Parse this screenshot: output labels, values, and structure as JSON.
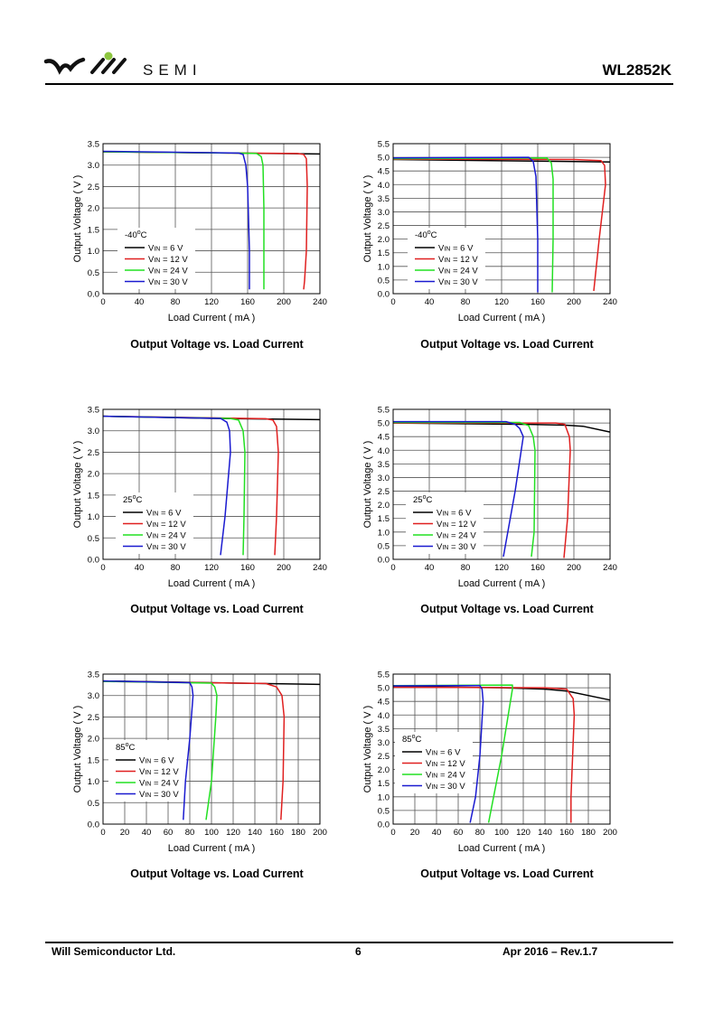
{
  "header": {
    "logo_text": "SEMI",
    "part_number": "WL2852K",
    "logo_accent": "#8dc63f"
  },
  "footer": {
    "company": "Will Semiconductor Ltd.",
    "page": "6",
    "revision": "Apr 2016 – Rev.1.7"
  },
  "colors": {
    "6V": "#000000",
    "12V": "#e02020",
    "24V": "#22e022",
    "30V": "#1a1ad0"
  },
  "chart_data": [
    {
      "type": "line",
      "title": "Output Voltage vs. Load Current",
      "xlabel": "Load Current ( mA )",
      "ylabel": "Output Voltage ( V )",
      "legend_title": "-40",
      "legend_unit": "C",
      "xlim": [
        0,
        240
      ],
      "ylim": [
        0,
        3.5
      ],
      "xticks": [
        0,
        40,
        80,
        120,
        160,
        200,
        240
      ],
      "yticks": [
        "0.0",
        "0.5",
        "1.0",
        "1.5",
        "2.0",
        "2.5",
        "3.0",
        "3.5"
      ],
      "grid": true,
      "legend": "center-left",
      "series": [
        {
          "name": "= 6 V",
          "key": "6V",
          "points": [
            [
              0,
              3.31
            ],
            [
              240,
              3.26
            ]
          ]
        },
        {
          "name": "= 12 V",
          "key": "12V",
          "points": [
            [
              0,
              3.31
            ],
            [
              150,
              3.28
            ],
            [
              215,
              3.27
            ],
            [
              222,
              3.25
            ],
            [
              225,
              3.15
            ],
            [
              226,
              2.5
            ],
            [
              225,
              1.0
            ],
            [
              223,
              0.3
            ],
            [
              222,
              0.1
            ]
          ]
        },
        {
          "name": "= 24 V",
          "key": "24V",
          "points": [
            [
              0,
              3.31
            ],
            [
              150,
              3.28
            ],
            [
              170,
              3.27
            ],
            [
              175,
              3.2
            ],
            [
              177,
              3.0
            ],
            [
              178,
              2.0
            ],
            [
              178,
              0.1
            ]
          ]
        },
        {
          "name": "= 30 V",
          "key": "30V",
          "points": [
            [
              0,
              3.32
            ],
            [
              150,
              3.28
            ],
            [
              155,
              3.25
            ],
            [
              158,
              3.0
            ],
            [
              160,
              2.5
            ],
            [
              162,
              1.0
            ],
            [
              162,
              0.1
            ]
          ]
        }
      ]
    },
    {
      "type": "line",
      "title": "Output Voltage vs. Load Current",
      "xlabel": "Load Current ( mA )",
      "ylabel": "Output Voltage ( V )",
      "legend_title": "-40",
      "legend_unit": "C",
      "xlim": [
        0,
        240
      ],
      "ylim": [
        0,
        5.5
      ],
      "xticks": [
        0,
        40,
        80,
        120,
        160,
        200,
        240
      ],
      "yticks": [
        "0.0",
        "0.5",
        "1.0",
        "1.5",
        "2.0",
        "2.5",
        "3.0",
        "3.5",
        "4.0",
        "4.5",
        "5.0",
        "5.5"
      ],
      "grid": true,
      "legend": "center-left",
      "series": [
        {
          "name": "= 6 V",
          "key": "6V",
          "points": [
            [
              0,
              4.92
            ],
            [
              240,
              4.83
            ]
          ]
        },
        {
          "name": "= 12 V",
          "key": "12V",
          "points": [
            [
              0,
              4.93
            ],
            [
              200,
              4.92
            ],
            [
              230,
              4.88
            ],
            [
              234,
              4.7
            ],
            [
              235,
              4.0
            ],
            [
              228,
              2.0
            ],
            [
              222,
              0.1
            ]
          ]
        },
        {
          "name": "= 24 V",
          "key": "24V",
          "points": [
            [
              0,
              4.95
            ],
            [
              170,
              4.98
            ],
            [
              175,
              4.8
            ],
            [
              177,
              4.2
            ],
            [
              177,
              2.0
            ],
            [
              176,
              0.05
            ]
          ]
        },
        {
          "name": "= 30 V",
          "key": "30V",
          "points": [
            [
              0,
              4.98
            ],
            [
              150,
              5.0
            ],
            [
              155,
              4.85
            ],
            [
              158,
              4.3
            ],
            [
              160,
              2.0
            ],
            [
              160,
              0.05
            ]
          ]
        }
      ]
    },
    {
      "type": "line",
      "title": "Output Voltage vs. Load Current",
      "xlabel": "Load Current ( mA )",
      "ylabel": "Output Voltage ( V )",
      "legend_title": "25",
      "legend_unit": "C",
      "xlim": [
        0,
        240
      ],
      "ylim": [
        0,
        3.5
      ],
      "xticks": [
        0,
        40,
        80,
        120,
        160,
        200,
        240
      ],
      "yticks": [
        "0.0",
        "0.5",
        "1.0",
        "1.5",
        "2.0",
        "2.5",
        "3.0",
        "3.5"
      ],
      "grid": true,
      "legend": "bottom-left",
      "series": [
        {
          "name": "= 6 V",
          "key": "6V",
          "points": [
            [
              0,
              3.34
            ],
            [
              120,
              3.29
            ],
            [
              240,
              3.26
            ]
          ]
        },
        {
          "name": "= 12 V",
          "key": "12V",
          "points": [
            [
              0,
              3.34
            ],
            [
              180,
              3.28
            ],
            [
              188,
              3.25
            ],
            [
              192,
              3.1
            ],
            [
              194,
              2.5
            ],
            [
              192,
              1.0
            ],
            [
              190,
              0.1
            ]
          ]
        },
        {
          "name": "= 24 V",
          "key": "24V",
          "points": [
            [
              0,
              3.34
            ],
            [
              140,
              3.29
            ],
            [
              150,
              3.25
            ],
            [
              155,
              3.0
            ],
            [
              157,
              2.5
            ],
            [
              156,
              1.0
            ],
            [
              155,
              0.1
            ]
          ]
        },
        {
          "name": "= 30 V",
          "key": "30V",
          "points": [
            [
              0,
              3.34
            ],
            [
              130,
              3.29
            ],
            [
              137,
              3.2
            ],
            [
              140,
              3.0
            ],
            [
              141,
              2.5
            ],
            [
              135,
              1.0
            ],
            [
              130,
              0.1
            ]
          ]
        }
      ]
    },
    {
      "type": "line",
      "title": "Output Voltage vs. Load Current",
      "xlabel": "Load Current ( mA )",
      "ylabel": "Output Voltage ( V )",
      "legend_title": "25",
      "legend_unit": "C",
      "xlim": [
        0,
        240
      ],
      "ylim": [
        0,
        5.5
      ],
      "xticks": [
        0,
        40,
        80,
        120,
        160,
        200,
        240
      ],
      "yticks": [
        "0.0",
        "0.5",
        "1.0",
        "1.5",
        "2.0",
        "2.5",
        "3.0",
        "3.5",
        "4.0",
        "4.5",
        "5.0",
        "5.5"
      ],
      "grid": true,
      "legend": "bottom-left",
      "series": [
        {
          "name": "= 6 V",
          "key": "6V",
          "points": [
            [
              0,
              5.0
            ],
            [
              150,
              4.95
            ],
            [
              190,
              4.92
            ],
            [
              210,
              4.88
            ],
            [
              240,
              4.67
            ]
          ]
        },
        {
          "name": "= 12 V",
          "key": "12V",
          "points": [
            [
              0,
              5.0
            ],
            [
              180,
              5.0
            ],
            [
              190,
              4.95
            ],
            [
              195,
              4.5
            ],
            [
              196,
              4.0
            ],
            [
              193,
              1.5
            ],
            [
              189,
              0.05
            ]
          ]
        },
        {
          "name": "= 24 V",
          "key": "24V",
          "points": [
            [
              0,
              5.02
            ],
            [
              140,
              5.02
            ],
            [
              150,
              4.9
            ],
            [
              155,
              4.5
            ],
            [
              157,
              4.0
            ],
            [
              156,
              1.0
            ],
            [
              153,
              0.1
            ]
          ]
        },
        {
          "name": "= 30 V",
          "key": "30V",
          "points": [
            [
              0,
              5.05
            ],
            [
              125,
              5.05
            ],
            [
              135,
              4.95
            ],
            [
              140,
              4.8
            ],
            [
              144,
              4.5
            ],
            [
              135,
              2.5
            ],
            [
              122,
              0.1
            ]
          ]
        }
      ]
    },
    {
      "type": "line",
      "title": "Output Voltage vs. Load Current",
      "xlabel": "Load Current ( mA )",
      "ylabel": "Output Voltage ( V )",
      "legend_title": "85",
      "legend_unit": "C",
      "xlim": [
        0,
        200
      ],
      "ylim": [
        0,
        3.5
      ],
      "xticks": [
        0,
        20,
        40,
        60,
        80,
        100,
        120,
        140,
        160,
        180,
        200
      ],
      "yticks": [
        "0.0",
        "0.5",
        "1.0",
        "1.5",
        "2.0",
        "2.5",
        "3.0",
        "3.5"
      ],
      "grid": true,
      "legend": "center-left",
      "series": [
        {
          "name": "= 6 V",
          "key": "6V",
          "points": [
            [
              0,
              3.34
            ],
            [
              200,
              3.26
            ]
          ]
        },
        {
          "name": "= 12 V",
          "key": "12V",
          "points": [
            [
              0,
              3.33
            ],
            [
              150,
              3.28
            ],
            [
              160,
              3.2
            ],
            [
              165,
              3.0
            ],
            [
              167,
              2.5
            ],
            [
              166,
              1.0
            ],
            [
              164,
              0.1
            ]
          ]
        },
        {
          "name": "= 24 V",
          "key": "24V",
          "points": [
            [
              0,
              3.33
            ],
            [
              100,
              3.29
            ],
            [
              103,
              3.2
            ],
            [
              105,
              3.0
            ],
            [
              104,
              2.5
            ],
            [
              100,
              1.0
            ],
            [
              95,
              0.1
            ]
          ]
        },
        {
          "name": "= 30 V",
          "key": "30V",
          "points": [
            [
              0,
              3.34
            ],
            [
              80,
              3.3
            ],
            [
              82,
              3.2
            ],
            [
              83,
              3.0
            ],
            [
              80,
              2.0
            ],
            [
              76,
              1.0
            ],
            [
              74,
              0.1
            ]
          ]
        }
      ]
    },
    {
      "type": "line",
      "title": "Output Voltage vs. Load Current",
      "xlabel": "Load Current ( mA )",
      "ylabel": "Output Voltage ( V )",
      "legend_title": "85",
      "legend_unit": "C",
      "xlim": [
        0,
        200
      ],
      "ylim": [
        0,
        5.5
      ],
      "xticks": [
        0,
        20,
        40,
        60,
        80,
        100,
        120,
        140,
        160,
        180,
        200
      ],
      "yticks": [
        "0.0",
        "0.5",
        "1.0",
        "1.5",
        "2.0",
        "2.5",
        "3.0",
        "3.5",
        "4.0",
        "4.5",
        "5.0",
        "5.5"
      ],
      "grid": true,
      "legend": "center-left",
      "series": [
        {
          "name": "= 6 V",
          "key": "6V",
          "points": [
            [
              0,
              5.05
            ],
            [
              100,
              5.0
            ],
            [
              140,
              4.95
            ],
            [
              160,
              4.88
            ],
            [
              200,
              4.55
            ]
          ]
        },
        {
          "name": "= 12 V",
          "key": "12V",
          "points": [
            [
              0,
              5.02
            ],
            [
              140,
              5.0
            ],
            [
              160,
              4.95
            ],
            [
              166,
              4.6
            ],
            [
              167,
              4.0
            ],
            [
              164,
              1.0
            ],
            [
              164,
              0.05
            ]
          ]
        },
        {
          "name": "= 24 V",
          "key": "24V",
          "points": [
            [
              0,
              5.08
            ],
            [
              110,
              5.1
            ],
            [
              110,
              4.95
            ],
            [
              100,
              2.5
            ],
            [
              88,
              0.05
            ]
          ]
        },
        {
          "name": "= 30 V",
          "key": "30V",
          "points": [
            [
              0,
              5.07
            ],
            [
              80,
              5.08
            ],
            [
              82,
              4.95
            ],
            [
              83,
              4.5
            ],
            [
              80,
              2.5
            ],
            [
              76,
              1.0
            ],
            [
              71,
              0.05
            ]
          ]
        }
      ]
    }
  ]
}
